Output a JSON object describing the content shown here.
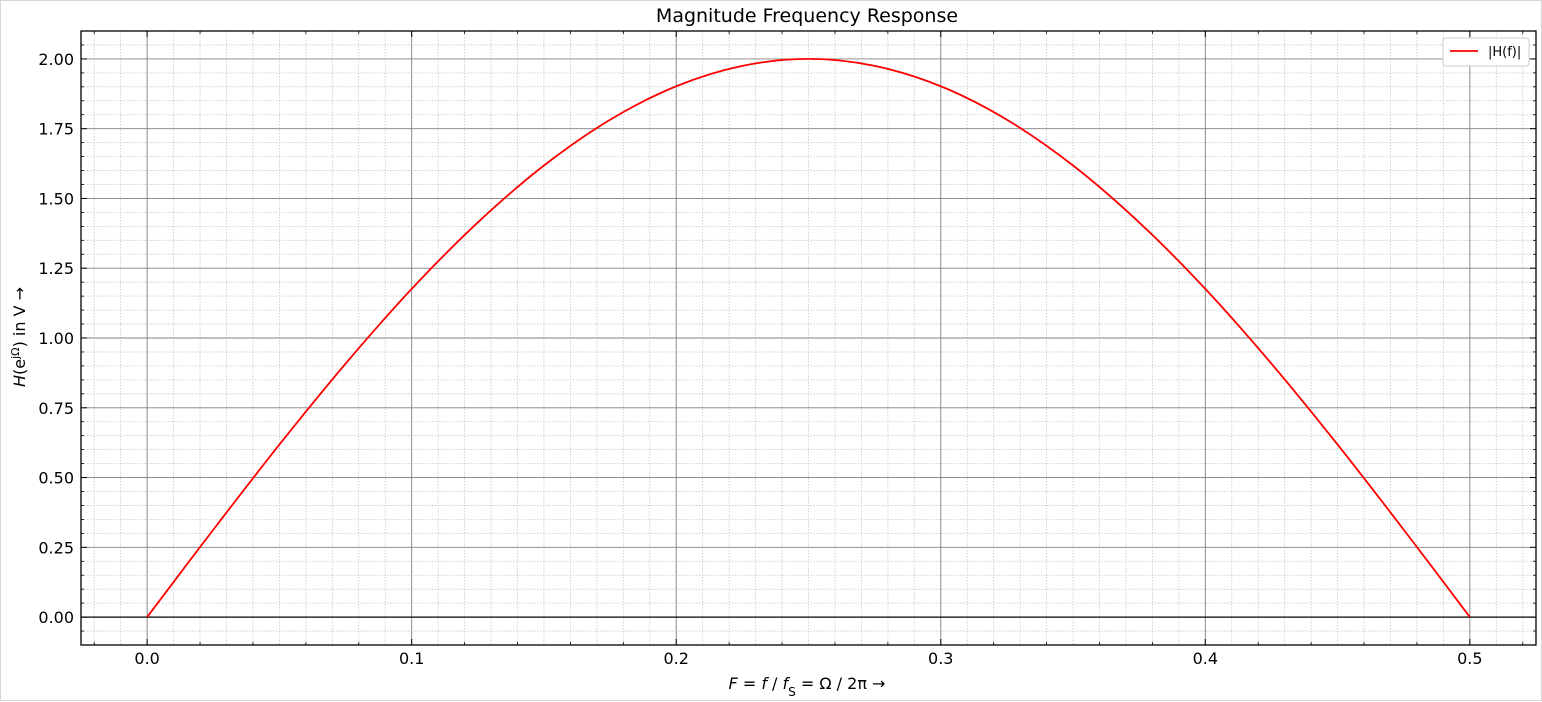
{
  "chart_data": {
    "type": "line",
    "title": "Magnitude Frequency Response",
    "xlabel": "F = f / f_S = Ω / 2π →",
    "ylabel": "H(e^jΩ) in V →",
    "xlim": [
      -0.025,
      0.525
    ],
    "ylim": [
      -0.1,
      2.1
    ],
    "x_ticks": [
      0.0,
      0.1,
      0.2,
      0.3,
      0.4,
      0.5
    ],
    "x_tick_labels": [
      "0.0",
      "0.1",
      "0.2",
      "0.3",
      "0.4",
      "0.5"
    ],
    "y_ticks": [
      0.0,
      0.25,
      0.5,
      0.75,
      1.0,
      1.25,
      1.5,
      1.75,
      2.0
    ],
    "y_tick_labels": [
      "0.00",
      "0.25",
      "0.50",
      "0.75",
      "1.00",
      "1.25",
      "1.50",
      "1.75",
      "2.00"
    ],
    "grid": true,
    "minor_grid": true,
    "legend_position": "top-right",
    "series": [
      {
        "name": "|H(f)|",
        "color": "#ff0000",
        "x": [
          0.0,
          0.025,
          0.05,
          0.075,
          0.1,
          0.125,
          0.15,
          0.175,
          0.2,
          0.225,
          0.25,
          0.275,
          0.3,
          0.325,
          0.35,
          0.375,
          0.4,
          0.425,
          0.45,
          0.475,
          0.5
        ],
        "y": [
          0.0,
          0.313,
          0.618,
          0.908,
          1.176,
          1.414,
          1.618,
          1.782,
          1.902,
          1.975,
          2.0,
          1.975,
          1.902,
          1.782,
          1.618,
          1.414,
          1.176,
          0.908,
          0.618,
          0.313,
          0.0
        ]
      }
    ]
  }
}
